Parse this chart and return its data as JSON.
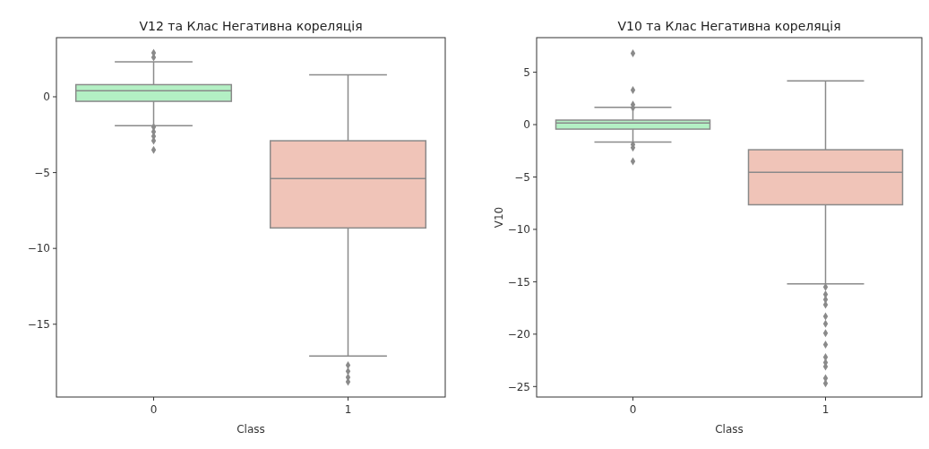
{
  "chart_data": [
    {
      "type": "box",
      "title": "V12 та Клас Негативна кореляція",
      "xlabel": "Class",
      "categories": [
        "0",
        "1"
      ],
      "colors": [
        "#b3f0c4",
        "#f0c4b8"
      ],
      "ylim": [
        -19.8,
        3.9
      ],
      "yticks": [
        0,
        -5,
        -10,
        -15
      ],
      "grid": false,
      "marker": "diamond",
      "boxes": [
        {
          "low": -1.9,
          "q1": -0.3,
          "median": 0.4,
          "q3": 0.8,
          "high": 2.3,
          "outliers": [
            2.9,
            2.6,
            -2.0,
            -2.3,
            -2.6,
            -2.9,
            -3.5
          ]
        },
        {
          "low": -17.1,
          "q1": -8.65,
          "median": -5.4,
          "q3": -2.9,
          "high": 1.45,
          "outliers": [
            -17.7,
            -18.1,
            -18.5,
            -18.8
          ]
        }
      ]
    },
    {
      "type": "box",
      "title": "V10 та Клас Негативна кореляція",
      "xlabel": "Class",
      "ylabel": "V10",
      "categories": [
        "0",
        "1"
      ],
      "colors": [
        "#b3f0c4",
        "#f0c4b8"
      ],
      "ylim": [
        -26.0,
        8.3
      ],
      "yticks": [
        5,
        0,
        -5,
        -10,
        -15,
        -20,
        -25
      ],
      "grid": false,
      "marker": "diamond",
      "boxes": [
        {
          "low": -1.67,
          "q1": -0.43,
          "median": 0.15,
          "q3": 0.43,
          "high": 1.64,
          "outliers": [
            6.8,
            3.3,
            1.9,
            1.6,
            -1.9,
            -2.2,
            -3.5
          ]
        },
        {
          "low": -15.2,
          "q1": -7.65,
          "median": -4.55,
          "q3": -2.4,
          "high": 4.17,
          "outliers": [
            -15.5,
            -16.2,
            -16.7,
            -17.2,
            -18.3,
            -19.0,
            -19.9,
            -21.0,
            -22.2,
            -22.7,
            -23.1,
            -24.2,
            -24.7
          ]
        }
      ]
    }
  ]
}
